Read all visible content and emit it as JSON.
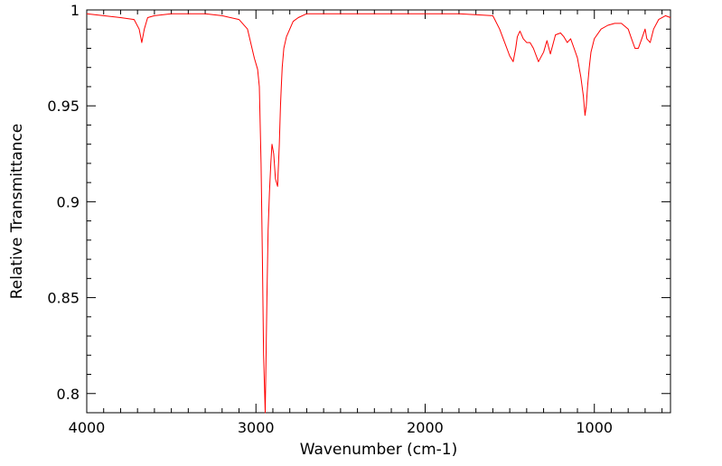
{
  "chart_data": {
    "type": "line",
    "title": "",
    "xlabel": "Wavenumber (cm-1)",
    "ylabel": "Relative Transmittance",
    "xlim": [
      4000,
      550
    ],
    "ylim": [
      0.79,
      1.0
    ],
    "x_reversed": true,
    "grid": false,
    "x_ticks": [
      4000,
      3000,
      2000,
      1000
    ],
    "x_tick_labels": [
      "4000",
      "3000",
      "2000",
      "1000"
    ],
    "y_ticks": [
      0.8,
      0.85,
      0.9,
      0.95,
      1.0
    ],
    "y_tick_labels": [
      "0.8",
      "0.85",
      "0.9",
      "0.95",
      "1"
    ],
    "series": [
      {
        "color": "#ff0000",
        "x": [
          4000,
          3900,
          3800,
          3720,
          3690,
          3675,
          3660,
          3640,
          3600,
          3500,
          3400,
          3300,
          3200,
          3100,
          3050,
          3010,
          2990,
          2980,
          2970,
          2962,
          2955,
          2945,
          2935,
          2928,
          2920,
          2912,
          2905,
          2895,
          2885,
          2872,
          2862,
          2855,
          2850,
          2845,
          2835,
          2820,
          2800,
          2780,
          2750,
          2700,
          2600,
          2500,
          2400,
          2200,
          2000,
          1800,
          1600,
          1560,
          1530,
          1500,
          1480,
          1465,
          1455,
          1440,
          1420,
          1400,
          1380,
          1360,
          1330,
          1300,
          1280,
          1260,
          1230,
          1200,
          1180,
          1160,
          1140,
          1120,
          1100,
          1080,
          1065,
          1055,
          1048,
          1040,
          1030,
          1020,
          1000,
          960,
          920,
          880,
          840,
          800,
          780,
          760,
          740,
          720,
          700,
          690,
          670,
          650,
          620,
          580,
          550
        ],
        "y": [
          0.998,
          0.997,
          0.996,
          0.995,
          0.99,
          0.983,
          0.99,
          0.996,
          0.997,
          0.998,
          0.998,
          0.998,
          0.997,
          0.995,
          0.99,
          0.975,
          0.969,
          0.96,
          0.92,
          0.87,
          0.82,
          0.79,
          0.85,
          0.885,
          0.905,
          0.92,
          0.93,
          0.925,
          0.912,
          0.908,
          0.93,
          0.95,
          0.96,
          0.97,
          0.98,
          0.986,
          0.99,
          0.994,
          0.996,
          0.998,
          0.998,
          0.998,
          0.998,
          0.998,
          0.998,
          0.998,
          0.997,
          0.99,
          0.983,
          0.976,
          0.973,
          0.98,
          0.986,
          0.989,
          0.985,
          0.983,
          0.983,
          0.98,
          0.973,
          0.978,
          0.984,
          0.977,
          0.987,
          0.988,
          0.986,
          0.983,
          0.985,
          0.98,
          0.975,
          0.965,
          0.955,
          0.945,
          0.95,
          0.96,
          0.97,
          0.978,
          0.985,
          0.99,
          0.992,
          0.993,
          0.993,
          0.99,
          0.985,
          0.98,
          0.98,
          0.985,
          0.99,
          0.985,
          0.983,
          0.99,
          0.995,
          0.997,
          0.996
        ]
      }
    ]
  }
}
